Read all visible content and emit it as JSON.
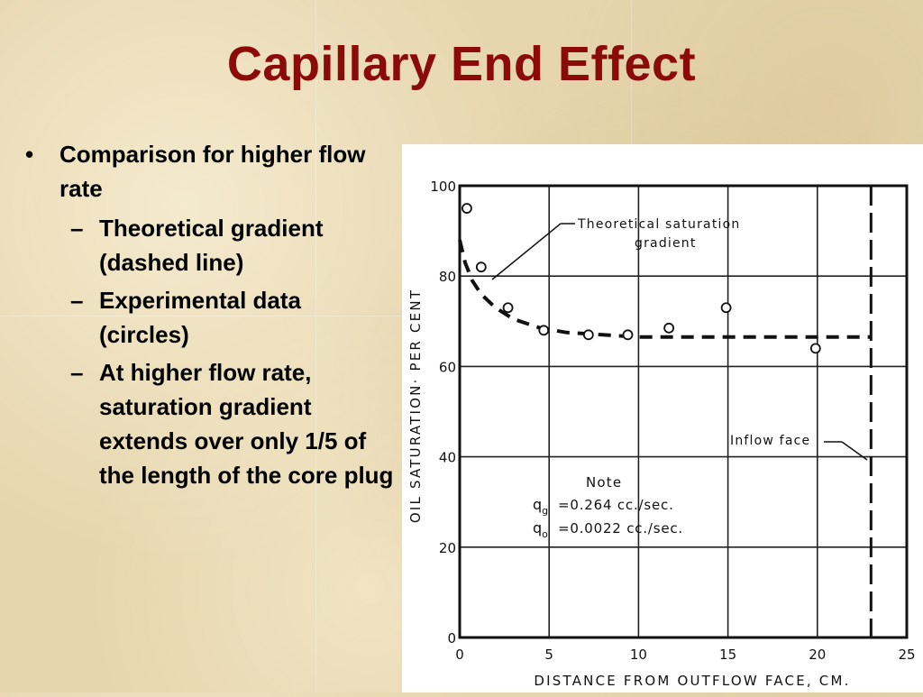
{
  "slide": {
    "title": "Capillary End Effect",
    "bullets": {
      "main": {
        "marker": "•",
        "text": "Comparison for higher flow rate"
      },
      "subs": [
        {
          "marker": "–",
          "text": "Theoretical gradient (dashed line)"
        },
        {
          "marker": "–",
          "text": "Experimental data (circles)"
        },
        {
          "marker": "–",
          "text": "At higher flow rate, saturation gradient extends over only 1/5 of the length of the core plug"
        }
      ]
    }
  },
  "chart_data": {
    "type": "scatter",
    "xlabel": "DISTANCE FROM OUTFLOW FACE, CM.",
    "ylabel": "OIL SATURATION· PER CENT",
    "xlim": [
      0,
      25
    ],
    "ylim": [
      0,
      100
    ],
    "x_ticks": [
      "0",
      "5",
      "10",
      "15",
      "20",
      "25"
    ],
    "y_ticks": [
      "0",
      "20",
      "40",
      "60",
      "80",
      "100"
    ],
    "grid": true,
    "series": [
      {
        "name": "Experimental data",
        "marker": "circle",
        "x": [
          0.4,
          1.2,
          2.7,
          4.7,
          7.2,
          9.4,
          11.7,
          14.9,
          19.9
        ],
        "y": [
          95,
          82,
          73,
          68,
          67,
          67,
          68.5,
          73,
          64
        ]
      },
      {
        "name": "Theoretical saturation gradient",
        "style": "dashed",
        "x": [
          0,
          0.3,
          0.7,
          1.2,
          2,
          3,
          4.5,
          6,
          8,
          10,
          13,
          17,
          20,
          23
        ],
        "y": [
          88,
          83,
          79,
          76,
          73,
          70.5,
          68.5,
          67.5,
          67,
          66.5,
          66.5,
          66.5,
          66.5,
          66.5
        ]
      }
    ],
    "inflow_face_x": 23,
    "annotations": {
      "theoretical": [
        "Theoretical saturation",
        "gradient"
      ],
      "inflow": "Inflow face",
      "note_title": "Note",
      "qg_label": "q",
      "qg_sub": "g",
      "qg_value": "=0.264 cc./sec.",
      "qo_label": "q",
      "qo_sub": "o",
      "qo_value": "=0.0022 cc./sec."
    },
    "colors": {
      "ink": "#111111",
      "background": "#ffffff"
    }
  }
}
